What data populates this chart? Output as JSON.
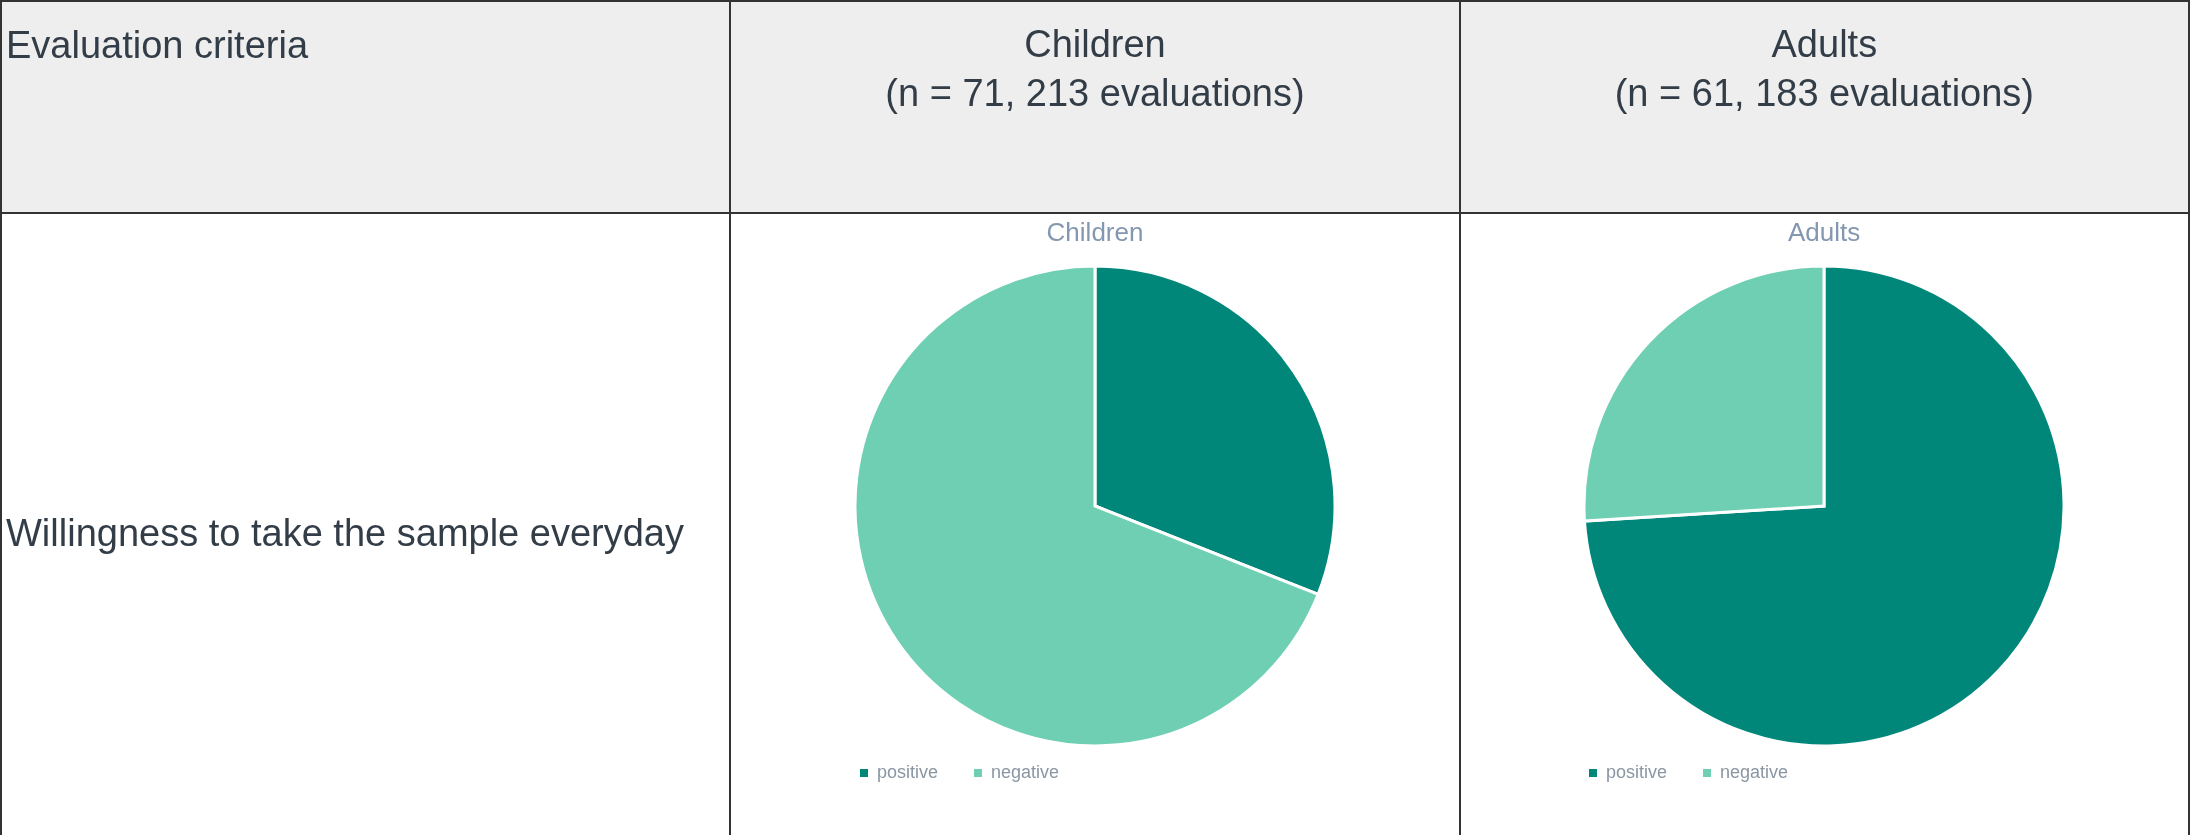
{
  "chart_data": [
    {
      "type": "other",
      "annotations": [
        "Evaluation criteria",
        "Children\n(n = 71, 213 evaluations)",
        "Adults\n(n = 61, 183 evaluations)",
        "Willingness to take the sample everyday"
      ]
    },
    {
      "type": "pie",
      "title": "Children",
      "categories": [
        "positive",
        "negative"
      ],
      "values": [
        31,
        69
      ],
      "colors": [
        "#00877a",
        "#6ecfb2"
      ],
      "legend": "bottom"
    },
    {
      "type": "pie",
      "title": "Adults",
      "categories": [
        "positive",
        "negative"
      ],
      "values": [
        74,
        26
      ],
      "colors": [
        "#00877a",
        "#6ecfb2"
      ],
      "legend": "bottom"
    }
  ]
}
